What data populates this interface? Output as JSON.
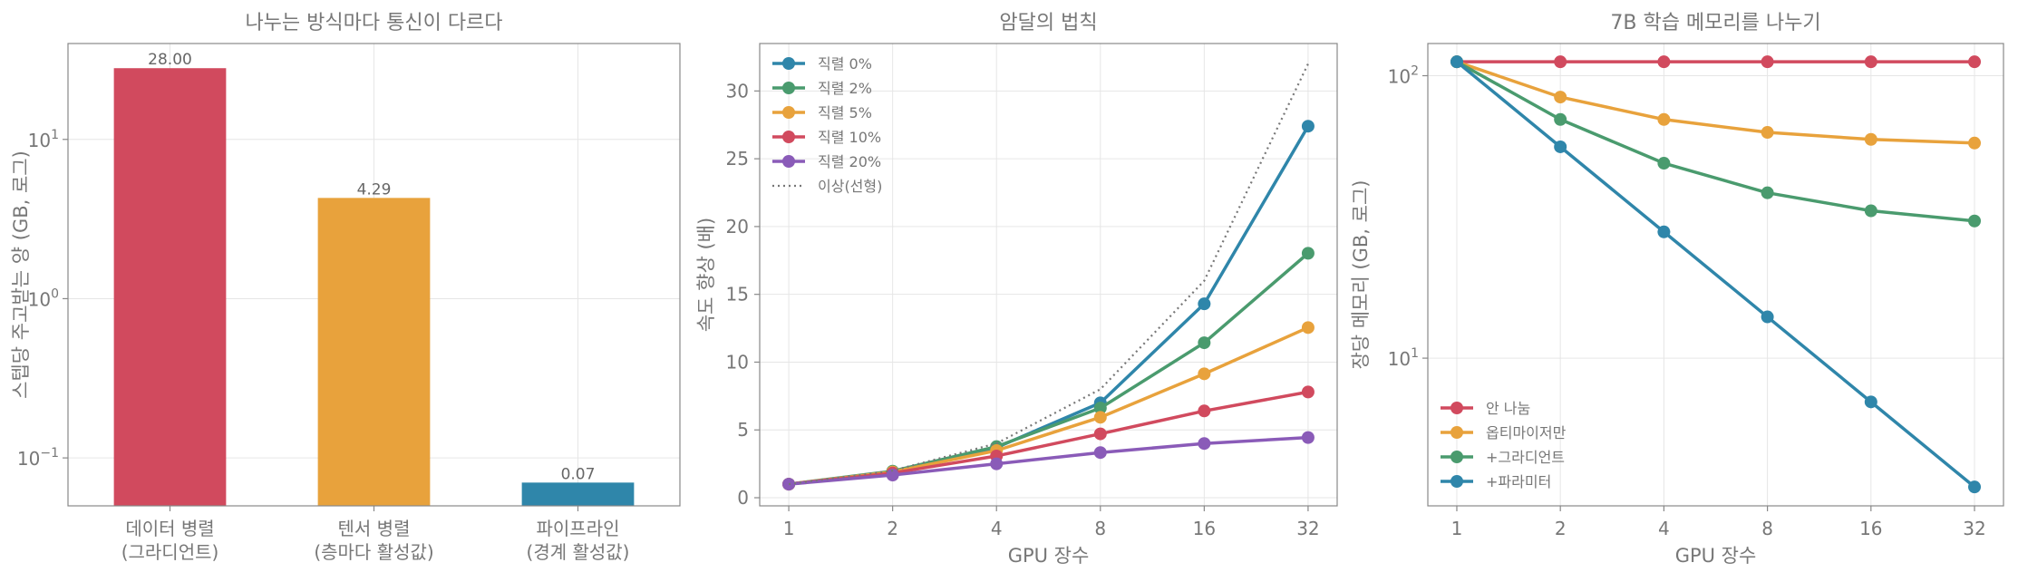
{
  "chart_data": [
    {
      "type": "bar",
      "title": "나누는 방식마다 통신이 다르다",
      "xlabel": "",
      "ylabel": "스텝당 주고받는 양 (GB, 로그)",
      "yscale": "log",
      "ylim": [
        0.05,
        40
      ],
      "yticks": [
        {
          "value": 0.1,
          "base": "10",
          "exp": "−1"
        },
        {
          "value": 1,
          "base": "10",
          "exp": "0"
        },
        {
          "value": 10,
          "base": "10",
          "exp": "1"
        }
      ],
      "grid": true,
      "categories": [
        {
          "line1": "데이터 병렬",
          "line2": "(그라디언트)"
        },
        {
          "line1": "텐서 병렬",
          "line2": "(층마다 활성값)"
        },
        {
          "line1": "파이프라인",
          "line2": "(경계 활성값)"
        }
      ],
      "values": [
        28.0,
        4.29,
        0.07
      ],
      "value_labels": [
        "28.00",
        "4.29",
        "0.07"
      ],
      "colors": [
        "#d14a5e",
        "#e8a23c",
        "#2f86aa"
      ]
    },
    {
      "type": "line",
      "title": "암달의 법칙",
      "xlabel": "GPU 장수",
      "ylabel": "속도 향상 (배)",
      "xscale": "log2",
      "x": [
        1,
        2,
        4,
        8,
        16,
        32
      ],
      "xtick_labels": [
        "1",
        "2",
        "4",
        "8",
        "16",
        "32"
      ],
      "ylim": [
        -0.6,
        33.5
      ],
      "yticks": [
        0,
        5,
        10,
        15,
        20,
        25,
        30
      ],
      "grid": true,
      "legend": "top-left",
      "series": [
        {
          "name": "직렬 0%",
          "color": "#2f86aa",
          "style": "solid",
          "marker": true,
          "values": [
            1,
            1.9,
            3.7,
            7.0,
            14.3,
            27.4
          ]
        },
        {
          "name": "직렬 2%",
          "color": "#4a9b6e",
          "style": "solid",
          "marker": true,
          "values": [
            1,
            1.96,
            3.77,
            6.61,
            11.43,
            18.03
          ]
        },
        {
          "name": "직렬 5%",
          "color": "#e8a23c",
          "style": "solid",
          "marker": true,
          "values": [
            1,
            1.9,
            3.48,
            5.93,
            9.14,
            12.55
          ]
        },
        {
          "name": "직렬 10%",
          "color": "#d14a5e",
          "style": "solid",
          "marker": true,
          "values": [
            1,
            1.82,
            3.08,
            4.71,
            6.4,
            7.8
          ]
        },
        {
          "name": "직렬 20%",
          "color": "#8a5bb8",
          "style": "solid",
          "marker": true,
          "values": [
            1,
            1.67,
            2.5,
            3.33,
            4.0,
            4.44
          ]
        },
        {
          "name": "이상(선형)",
          "color": "#777777",
          "style": "dotted",
          "marker": false,
          "values": [
            1,
            2,
            4,
            8,
            16,
            32
          ]
        }
      ]
    },
    {
      "type": "line",
      "title": "7B 학습 메모리를 나누기",
      "xlabel": "GPU 장수",
      "ylabel": "장당 메모리 (GB, 로그)",
      "xscale": "log2",
      "yscale": "log",
      "x": [
        1,
        2,
        4,
        8,
        16,
        32
      ],
      "xtick_labels": [
        "1",
        "2",
        "4",
        "8",
        "16",
        "32"
      ],
      "ylim": [
        3,
        130
      ],
      "yticks": [
        {
          "value": 10,
          "base": "10",
          "exp": "1"
        },
        {
          "value": 100,
          "base": "10",
          "exp": "2"
        }
      ],
      "grid": true,
      "legend": "bottom-left",
      "series": [
        {
          "name": "안 나눔",
          "color": "#d14a5e",
          "values": [
            112,
            112,
            112,
            112,
            112,
            112
          ]
        },
        {
          "name": "옵티마이저만",
          "color": "#e8a23c",
          "values": [
            112,
            84,
            70,
            63,
            59.5,
            57.75
          ]
        },
        {
          "name": "+그라디언트",
          "color": "#4a9b6e",
          "values": [
            112,
            70,
            49,
            38.5,
            33.25,
            30.6
          ]
        },
        {
          "name": "+파라미터",
          "color": "#2f86aa",
          "values": [
            112,
            56,
            28,
            14,
            7,
            3.5
          ]
        }
      ]
    }
  ]
}
